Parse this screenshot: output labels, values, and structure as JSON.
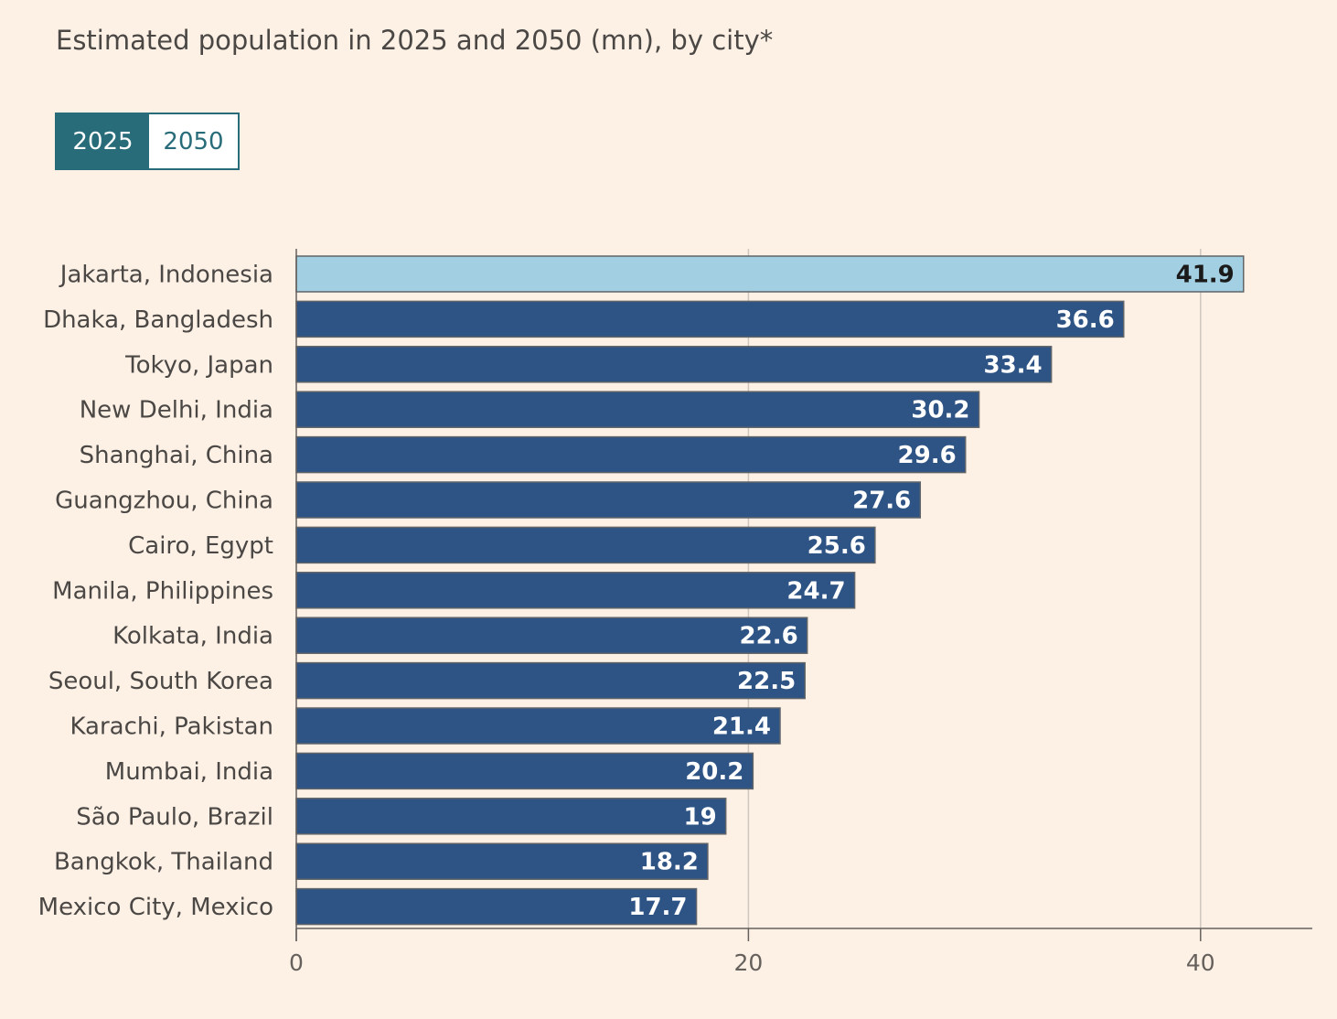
{
  "title": "Estimated population in 2025 and 2050 (mn), by city*",
  "toggle": {
    "options": [
      "2025",
      "2050"
    ],
    "selected": "2025"
  },
  "colors": {
    "background": "#fdf1e6",
    "bar": "#2e5385",
    "highlight_bar": "#a3cfe3",
    "toggle_accent": "#286c7a",
    "gridline": "#cfc6bd",
    "axis": "#66605c"
  },
  "chart_data": {
    "type": "bar",
    "orientation": "horizontal",
    "title": "Estimated population in 2025 and 2050 (mn), by city*",
    "xlabel": "",
    "ylabel": "",
    "xlim": [
      0,
      45
    ],
    "xticks": [
      0,
      20,
      40
    ],
    "grid": true,
    "highlight": "Jakarta, Indonesia",
    "categories": [
      "Jakarta, Indonesia",
      "Dhaka, Bangladesh",
      "Tokyo, Japan",
      "New Delhi, India",
      "Shanghai, China",
      "Guangzhou, China",
      "Cairo, Egypt",
      "Manila, Philippines",
      "Kolkata, India",
      "Seoul, South Korea",
      "Karachi, Pakistan",
      "Mumbai, India",
      "São Paulo, Brazil",
      "Bangkok, Thailand",
      "Mexico City, Mexico"
    ],
    "values": [
      41.9,
      36.6,
      33.4,
      30.2,
      29.6,
      27.6,
      25.6,
      24.7,
      22.6,
      22.5,
      21.4,
      20.2,
      19,
      18.2,
      17.7
    ],
    "value_labels": [
      "41.9",
      "36.6",
      "33.4",
      "30.2",
      "29.6",
      "27.6",
      "25.6",
      "24.7",
      "22.6",
      "22.5",
      "21.4",
      "20.2",
      "19",
      "18.2",
      "17.7"
    ]
  }
}
